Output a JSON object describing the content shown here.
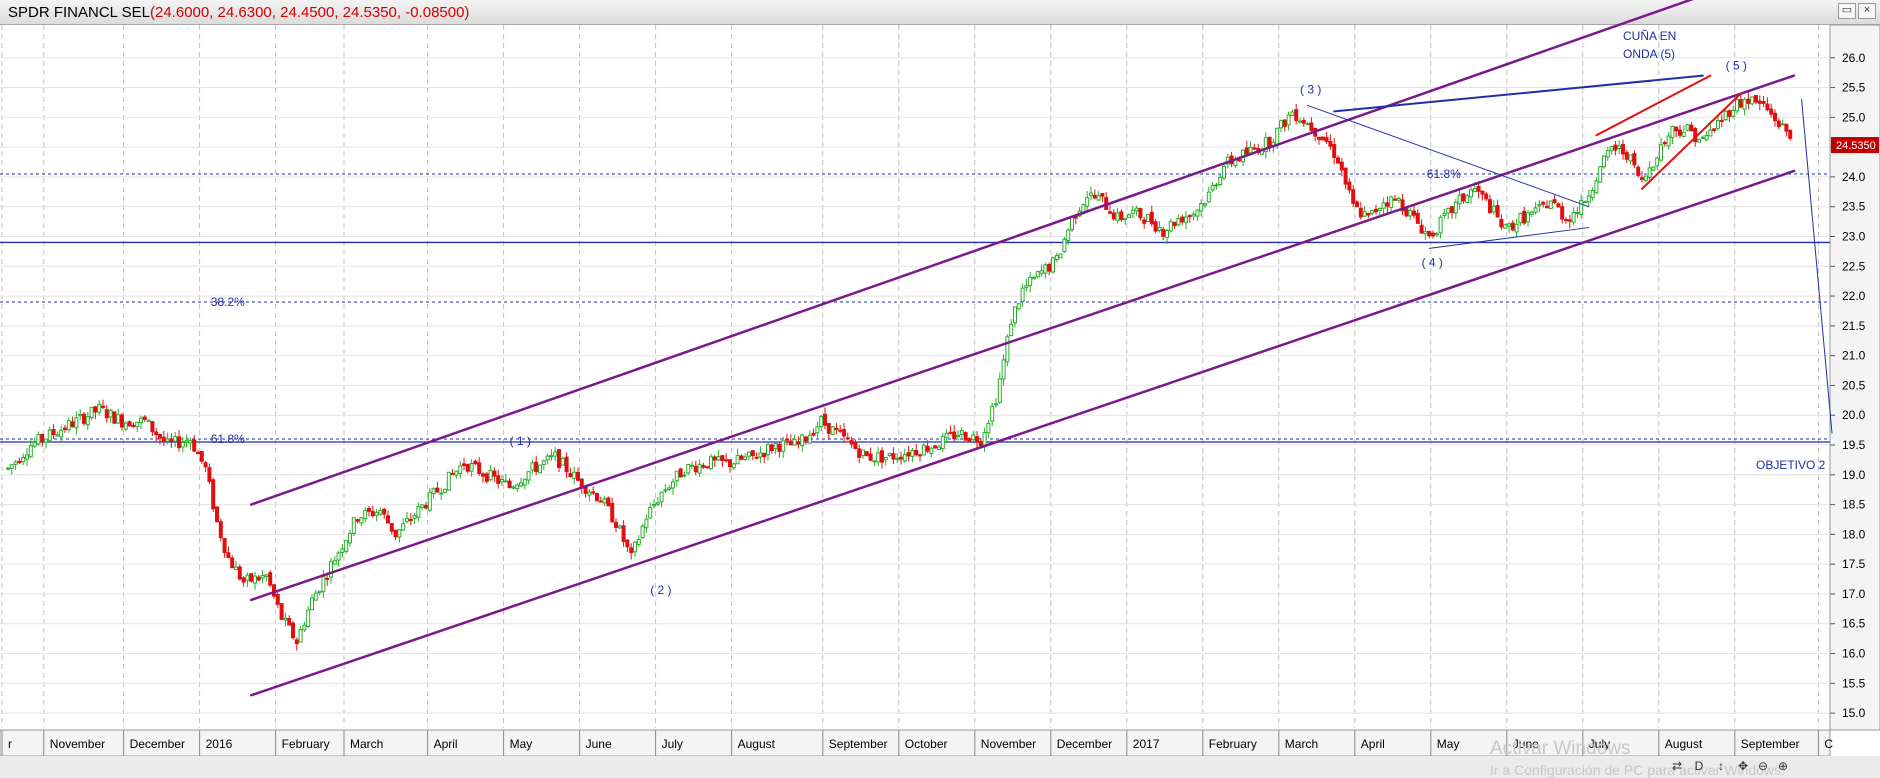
{
  "window": {
    "title_name": "SPDR FINANCL SEL",
    "title_values": "(24.6000, 24.6300, 24.4500, 24.5350, -0.08500)",
    "buttons": [
      "▭",
      "×"
    ]
  },
  "chart_data": {
    "type": "candlestick",
    "ylim": [
      14.75,
      26.55
    ],
    "yticks": [
      15.0,
      15.5,
      16.0,
      16.5,
      17.0,
      17.5,
      18.0,
      18.5,
      19.0,
      19.5,
      20.0,
      20.5,
      21.0,
      21.5,
      22.0,
      22.5,
      23.0,
      23.5,
      24.0,
      24.5,
      25.0,
      25.5,
      26.0
    ],
    "ytick_labels": [
      "15.0",
      "15.5",
      "16.0",
      "16.5",
      "17.0",
      "17.5",
      "18.0",
      "18.5",
      "19.0",
      "19.5",
      "20.0",
      "20.5",
      "21.0",
      "21.5",
      "22.0",
      "22.5",
      "23.0",
      "23.5",
      "24.0",
      "24.5",
      "25.0",
      "25.5",
      "26.0"
    ],
    "last_price": 24.535,
    "last_price_label": "24.5350",
    "x_labels": [
      {
        "text": "r",
        "month": 0.0
      },
      {
        "text": "November",
        "month": 0.55
      },
      {
        "text": "December",
        "month": 1.6
      },
      {
        "text": "2016",
        "month": 2.6
      },
      {
        "text": "February",
        "month": 3.6
      },
      {
        "text": "March",
        "month": 4.5
      },
      {
        "text": "April",
        "month": 5.6
      },
      {
        "text": "May",
        "month": 6.6
      },
      {
        "text": "June",
        "month": 7.6
      },
      {
        "text": "July",
        "month": 8.6
      },
      {
        "text": "August",
        "month": 9.6
      },
      {
        "text": "September",
        "month": 10.8
      },
      {
        "text": "October",
        "month": 11.8
      },
      {
        "text": "November",
        "month": 12.8
      },
      {
        "text": "December",
        "month": 13.8
      },
      {
        "text": "2017",
        "month": 14.8
      },
      {
        "text": "February",
        "month": 15.8
      },
      {
        "text": "March",
        "month": 16.8
      },
      {
        "text": "April",
        "month": 17.8
      },
      {
        "text": "May",
        "month": 18.8
      },
      {
        "text": "June",
        "month": 19.8
      },
      {
        "text": "July",
        "month": 20.8
      },
      {
        "text": "August",
        "month": 21.8
      },
      {
        "text": "September",
        "month": 22.8
      },
      {
        "text": "C",
        "month": 23.9
      }
    ],
    "price_path": [
      [
        0.0,
        19.1
      ],
      [
        0.3,
        19.5
      ],
      [
        0.6,
        19.7
      ],
      [
        0.9,
        19.9
      ],
      [
        1.2,
        20.1
      ],
      [
        1.5,
        19.9
      ],
      [
        1.8,
        19.9
      ],
      [
        2.1,
        19.5
      ],
      [
        2.4,
        19.6
      ],
      [
        2.6,
        19.1
      ],
      [
        2.75,
        18.2
      ],
      [
        2.9,
        17.6
      ],
      [
        3.1,
        17.2
      ],
      [
        3.4,
        17.3
      ],
      [
        3.6,
        16.6
      ],
      [
        3.8,
        16.2
      ],
      [
        4.0,
        16.9
      ],
      [
        4.3,
        17.6
      ],
      [
        4.6,
        18.3
      ],
      [
        4.9,
        18.4
      ],
      [
        5.1,
        18.0
      ],
      [
        5.4,
        18.4
      ],
      [
        5.7,
        18.8
      ],
      [
        6.0,
        19.2
      ],
      [
        6.3,
        19.0
      ],
      [
        6.6,
        18.8
      ],
      [
        6.9,
        19.1
      ],
      [
        7.2,
        19.3
      ],
      [
        7.5,
        18.9
      ],
      [
        7.8,
        18.6
      ],
      [
        8.0,
        18.2
      ],
      [
        8.2,
        17.6
      ],
      [
        8.4,
        18.3
      ],
      [
        8.6,
        18.7
      ],
      [
        8.9,
        19.1
      ],
      [
        9.2,
        19.2
      ],
      [
        9.5,
        19.2
      ],
      [
        9.8,
        19.3
      ],
      [
        10.1,
        19.5
      ],
      [
        10.4,
        19.5
      ],
      [
        10.7,
        19.9
      ],
      [
        11.0,
        19.6
      ],
      [
        11.3,
        19.3
      ],
      [
        11.6,
        19.3
      ],
      [
        11.9,
        19.4
      ],
      [
        12.2,
        19.5
      ],
      [
        12.5,
        19.7
      ],
      [
        12.8,
        19.6
      ],
      [
        13.0,
        20.3
      ],
      [
        13.1,
        20.9
      ],
      [
        13.2,
        21.6
      ],
      [
        13.35,
        22.1
      ],
      [
        13.6,
        22.4
      ],
      [
        13.8,
        22.6
      ],
      [
        14.0,
        23.3
      ],
      [
        14.2,
        23.7
      ],
      [
        14.4,
        23.6
      ],
      [
        14.6,
        23.3
      ],
      [
        14.8,
        23.4
      ],
      [
        15.0,
        23.3
      ],
      [
        15.2,
        23.1
      ],
      [
        15.4,
        23.3
      ],
      [
        15.6,
        23.4
      ],
      [
        15.8,
        23.7
      ],
      [
        16.0,
        24.2
      ],
      [
        16.3,
        24.4
      ],
      [
        16.6,
        24.6
      ],
      [
        16.9,
        25.1
      ],
      [
        17.1,
        24.9
      ],
      [
        17.35,
        24.6
      ],
      [
        17.5,
        24.3
      ],
      [
        17.7,
        23.5
      ],
      [
        17.9,
        23.3
      ],
      [
        18.1,
        23.6
      ],
      [
        18.3,
        23.6
      ],
      [
        18.5,
        23.3
      ],
      [
        18.7,
        23.0
      ],
      [
        18.9,
        23.3
      ],
      [
        19.1,
        23.6
      ],
      [
        19.3,
        23.8
      ],
      [
        19.5,
        23.5
      ],
      [
        19.7,
        23.1
      ],
      [
        19.9,
        23.3
      ],
      [
        20.1,
        23.4
      ],
      [
        20.3,
        23.6
      ],
      [
        20.5,
        23.3
      ],
      [
        20.7,
        23.5
      ],
      [
        20.9,
        24.0
      ],
      [
        21.1,
        24.5
      ],
      [
        21.3,
        24.4
      ],
      [
        21.5,
        23.9
      ],
      [
        21.7,
        24.4
      ],
      [
        21.9,
        24.8
      ],
      [
        22.1,
        24.8
      ],
      [
        22.3,
        24.6
      ],
      [
        22.5,
        24.9
      ],
      [
        22.7,
        25.2
      ],
      [
        22.9,
        25.3
      ],
      [
        23.1,
        25.2
      ],
      [
        23.3,
        24.9
      ],
      [
        23.5,
        24.6
      ]
    ],
    "hlines": [
      {
        "y": 22.9,
        "style": "solid",
        "color": "#1f2fa6"
      },
      {
        "y": 19.55,
        "style": "solid",
        "color": "#1f2fa6"
      },
      {
        "y": 21.9,
        "style": "dotted",
        "color": "#1f2fa6",
        "label": "38.2%",
        "label_month": 3.3
      },
      {
        "y": 19.6,
        "style": "dotted",
        "color": "#1f2fa6",
        "label": "61.8%",
        "label_month": 3.3
      },
      {
        "y": 24.05,
        "style": "dotted",
        "color": "#1f2fa6",
        "label": "61.8%",
        "label_month": 19.3
      }
    ],
    "trendlines": [
      {
        "p1": [
          3.2,
          18.5
        ],
        "p2": [
          22.2,
          27.0
        ],
        "color": "#7a1a8a",
        "width": 2.5
      },
      {
        "p1": [
          3.2,
          16.9
        ],
        "p2": [
          23.5,
          25.7
        ],
        "color": "#7a1a8a",
        "width": 2.5
      },
      {
        "p1": [
          3.2,
          15.3
        ],
        "p2": [
          23.5,
          24.1
        ],
        "color": "#7a1a8a",
        "width": 2.5
      },
      {
        "p1": [
          17.45,
          25.1
        ],
        "p2": [
          22.3,
          25.7
        ],
        "color": "#1f2fa6",
        "width": 2
      },
      {
        "p1": [
          17.1,
          25.2
        ],
        "p2": [
          20.8,
          23.5
        ],
        "color": "#1f2fa6",
        "width": 1
      },
      {
        "p1": [
          18.7,
          22.8
        ],
        "p2": [
          20.8,
          23.15
        ],
        "color": "#1f2fa6",
        "width": 1
      },
      {
        "p1": [
          20.9,
          24.7
        ],
        "p2": [
          22.4,
          25.7
        ],
        "color": "#e01010",
        "width": 2
      },
      {
        "p1": [
          21.5,
          23.8
        ],
        "p2": [
          22.8,
          25.4
        ],
        "color": "#e01010",
        "width": 2
      },
      {
        "p1": [
          23.6,
          25.3
        ],
        "p2": [
          24.0,
          19.7
        ],
        "color": "#1f2fa6",
        "width": 1
      }
    ],
    "annotations": [
      {
        "text": "( 1 )",
        "month": 6.6,
        "y": 19.5
      },
      {
        "text": "( 2 )",
        "month": 8.45,
        "y": 17.0
      },
      {
        "text": "( 3 )",
        "month": 17.0,
        "y": 25.4
      },
      {
        "text": "( 4 )",
        "month": 18.6,
        "y": 22.5
      },
      {
        "text": "( 5 )",
        "month": 22.6,
        "y": 25.8
      },
      {
        "text": "CUÑA EN",
        "month": 21.25,
        "y": 26.3
      },
      {
        "text": "ONDA (5)",
        "month": 21.25,
        "y": 26.0
      },
      {
        "text": "OBJETIVO 2",
        "month": 23.0,
        "y": 19.1
      }
    ],
    "colors": {
      "up": "#26b026",
      "down": "#e01010",
      "grid": "#c0c0c0",
      "text_blue": "#1f2fa6",
      "price_box": "#c00000"
    }
  },
  "toolbar": {
    "buttons": [
      "⇄",
      "D",
      "↕",
      "✥",
      "⊖",
      "⊕"
    ]
  },
  "watermark": {
    "line1": "Activar Windows",
    "line2": "Ir a Configuración de PC para activar Windows."
  }
}
